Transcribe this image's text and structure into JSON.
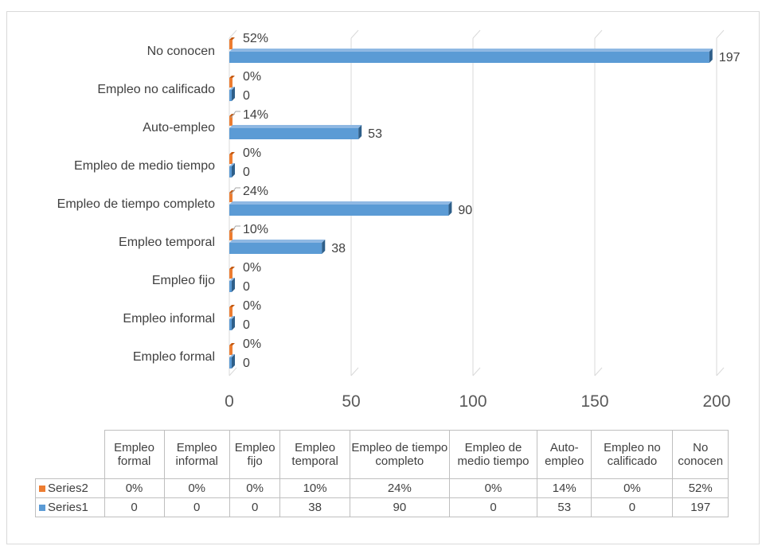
{
  "chart_data": {
    "type": "bar",
    "orientation": "horizontal",
    "categories": [
      "Empleo formal",
      "Empleo informal",
      "Empleo fijo",
      "Empleo temporal",
      "Empleo de tiempo completo",
      "Empleo de medio tiempo",
      "Auto-empleo",
      "Empleo no calificado",
      "No conocen"
    ],
    "table_headers": [
      "Empleo formal",
      "Empleo informal",
      "Empleo fijo",
      "Empleo temporal",
      "Empleo de tiempo completo",
      "Empleo de medio tiempo",
      "Auto-empleo",
      "Empleo no calificado",
      "No conocen"
    ],
    "series": [
      {
        "name": "Series2",
        "color": "#ed7d31",
        "values": [
          0,
          0,
          0,
          0.1,
          0.24,
          0,
          0.14,
          0,
          0.52
        ],
        "labels": [
          "0%",
          "0%",
          "0%",
          "10%",
          "24%",
          "0%",
          "14%",
          "0%",
          "52%"
        ]
      },
      {
        "name": "Series1",
        "color": "#5b9bd5",
        "values": [
          0,
          0,
          0,
          38,
          90,
          0,
          53,
          0,
          197
        ],
        "labels": [
          "0",
          "0",
          "0",
          "38",
          "90",
          "0",
          "53",
          "0",
          "197"
        ]
      }
    ],
    "xlim": [
      0,
      200
    ],
    "xticks": [
      0,
      50,
      100,
      150,
      200
    ],
    "xtick_labels": [
      "0",
      "50",
      "100",
      "150",
      "200"
    ],
    "grid": true,
    "data_table": true
  }
}
